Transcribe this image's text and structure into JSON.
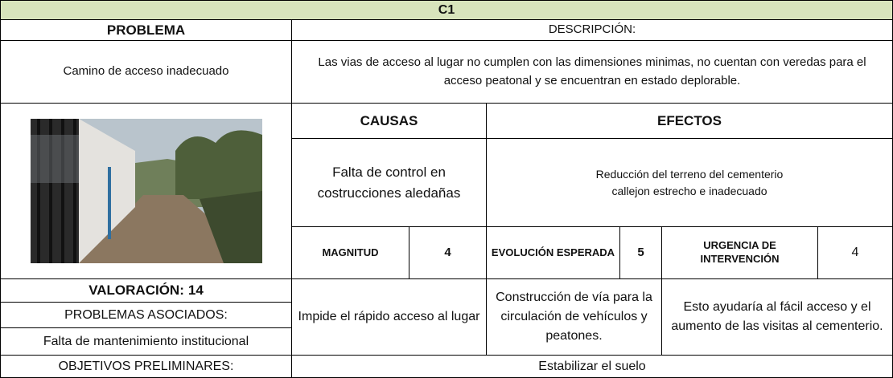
{
  "header": {
    "title": "C1"
  },
  "problema": {
    "label": "PROBLEMA",
    "value": "Camino de acceso inadecuado"
  },
  "descripcion": {
    "label": "DESCRIPCIÓN:",
    "text": "Las vias de acceso al lugar no cumplen con las dimensiones minimas, no cuentan con veredas para el acceso peatonal y se encuentran en estado deplorable."
  },
  "causas": {
    "label": "CAUSAS",
    "lines": [
      "Falta de control  en",
      "costrucciones aledañas"
    ]
  },
  "efectos": {
    "label": "EFECTOS",
    "lines": [
      "Reducción del terreno del cementerio",
      "callejon estrecho e inadecuado"
    ]
  },
  "ratings": {
    "magnitud": {
      "label": "MAGNITUD",
      "value": 4
    },
    "evolucion": {
      "label": "EVOLUCIÓN ESPERADA",
      "value": 5
    },
    "urgencia": {
      "label": "URGENCIA DE INTERVENCIÓN",
      "value": 4
    }
  },
  "valoracion": {
    "label": "VALORACIÓN:",
    "value": 14
  },
  "problemas_asociados": {
    "label": "PROBLEMAS ASOCIADOS:",
    "value": "Falta de mantenimiento institucional"
  },
  "soluciones": [
    "Impide el rápido acceso al lugar",
    "Construcción de vía para la circulación de vehículos y peatones.",
    "Esto ayudaría al fácil acceso y el aumento de las visitas al cementerio."
  ],
  "objetivos": {
    "label": "OBJETIVOS PRELIMINARES:",
    "value": "Estabilizar el suelo"
  }
}
